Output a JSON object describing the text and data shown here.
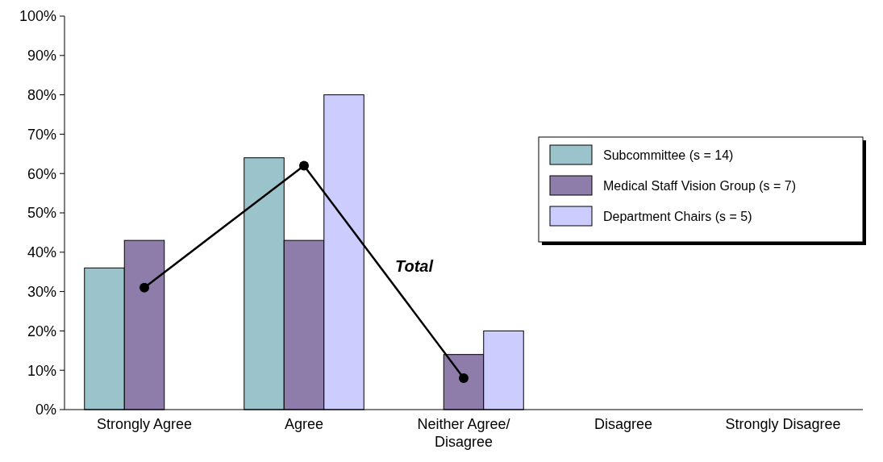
{
  "chart_data": {
    "type": "bar",
    "categories": [
      "Strongly Agree",
      "Agree",
      "Neither Agree/ Disagree",
      "Disagree",
      "Strongly Disagree"
    ],
    "series": [
      {
        "name": "Subcommittee (s = 14)",
        "color": "#9bc3cb",
        "values": [
          36,
          64,
          0,
          0,
          0
        ]
      },
      {
        "name": "Medical Staff Vision Group (s = 7)",
        "color": "#8e7cab",
        "values": [
          43,
          43,
          14,
          0,
          0
        ]
      },
      {
        "name": "Department Chairs (s = 5)",
        "color": "#ccccff",
        "values": [
          0,
          80,
          20,
          0,
          0
        ]
      },
      {
        "name": "Total",
        "type": "line",
        "color": "#000000",
        "values": [
          31,
          62,
          8,
          null,
          null
        ]
      }
    ],
    "ylim": [
      0,
      100
    ],
    "yticks": [
      {
        "value": 0,
        "label": "0%"
      },
      {
        "value": 10,
        "label": "10%"
      },
      {
        "value": 20,
        "label": "20%"
      },
      {
        "value": 30,
        "label": "30%"
      },
      {
        "value": 40,
        "label": "40%"
      },
      {
        "value": 50,
        "label": "50%"
      },
      {
        "value": 60,
        "label": "60%"
      },
      {
        "value": 70,
        "label": "70%"
      },
      {
        "value": 80,
        "label": "80%"
      },
      {
        "value": 90,
        "label": "90%"
      },
      {
        "value": 100,
        "label": "100%"
      }
    ],
    "grid": false,
    "legend": "right",
    "marker": "circle"
  }
}
